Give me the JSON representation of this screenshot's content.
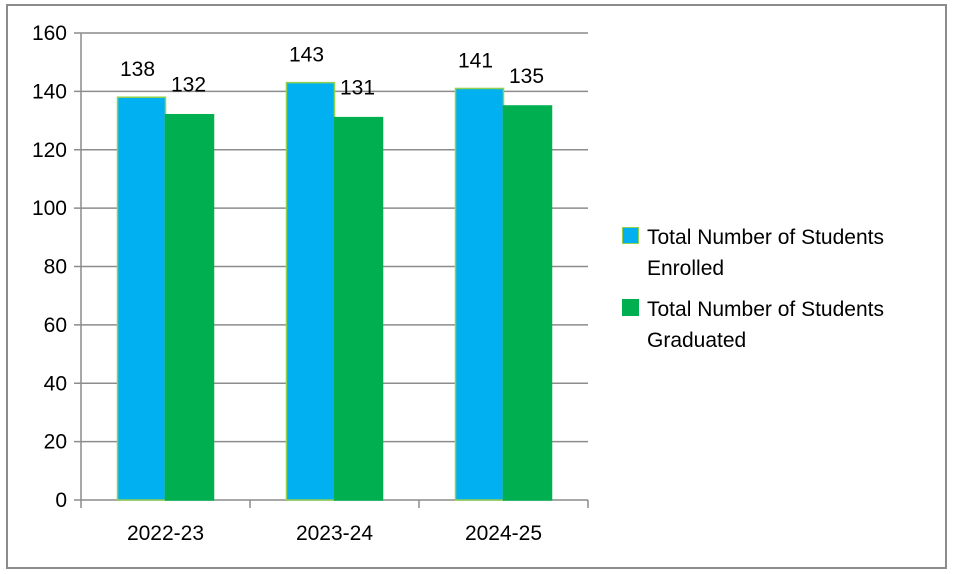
{
  "chart_data": {
    "type": "bar",
    "title": "",
    "xlabel": "",
    "ylabel": "",
    "categories": [
      "2022-23",
      "2023-24",
      "2024-25"
    ],
    "series": [
      {
        "name": "Total Number of Students Enrolled",
        "values": [
          138,
          143,
          141
        ],
        "color": "#00b0f0",
        "edge_color": "#92d050"
      },
      {
        "name": "Total Number of Students Graduated",
        "values": [
          132,
          131,
          135
        ],
        "color": "#00b050",
        "edge_color": "#00b050"
      }
    ],
    "ylim": [
      0,
      160
    ],
    "yticks": [
      0,
      20,
      40,
      60,
      80,
      100,
      120,
      140,
      160
    ],
    "grid": true,
    "legend_position": "right",
    "data_labels": true
  }
}
